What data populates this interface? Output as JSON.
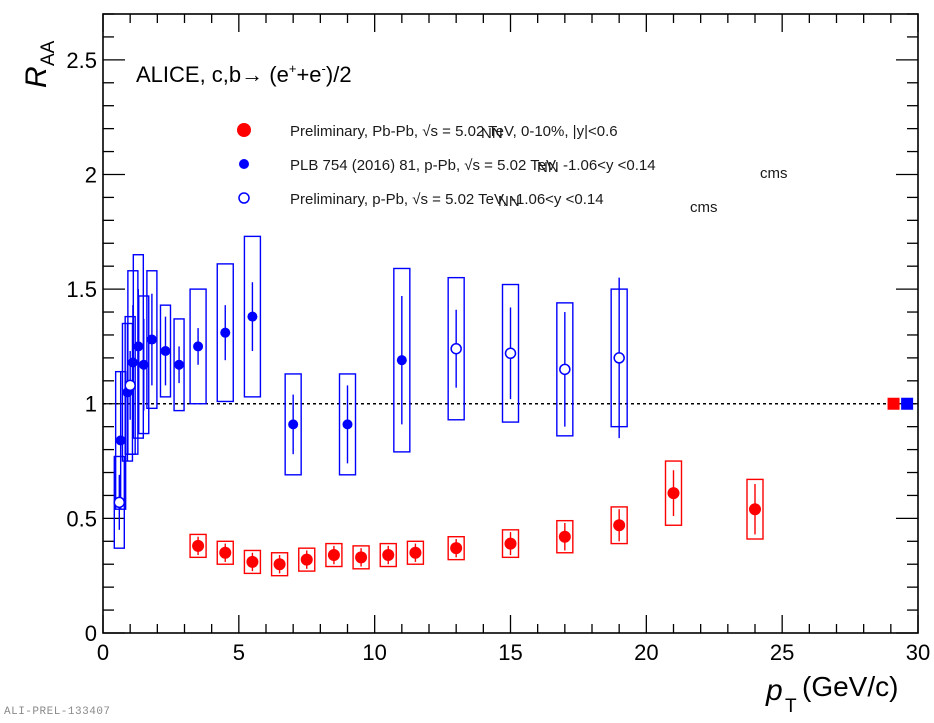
{
  "chart_data": {
    "type": "scatter",
    "title": "ALICE, c,b→ (e⁺+e⁻)/2",
    "xlabel": "p_T (GeV/c)",
    "xlabel_main": "p",
    "xlabel_sub": "T",
    "xlabel_unit": "(GeV/c)",
    "ylabel": "R_AA",
    "ylabel_main": "R",
    "ylabel_sub": "AA",
    "xlim": [
      0,
      30
    ],
    "ylim": [
      0,
      2.7
    ],
    "x_ticks": [
      0,
      5,
      10,
      15,
      20,
      25,
      30
    ],
    "x_tick_labels": [
      "0",
      "5",
      "10",
      "15",
      "20",
      "25",
      "30"
    ],
    "y_ticks": [
      0,
      0.5,
      1,
      1.5,
      2,
      2.5
    ],
    "y_tick_labels": [
      "0",
      "0.5",
      "1",
      "1.5",
      "2",
      "2.5"
    ],
    "reference_line": 1,
    "grid": false,
    "legend_position": "top",
    "series": [
      {
        "name": "Preliminary, Pb-Pb, √s_NN = 5.02 TeV, 0-10%, |y|<0.6",
        "legend_label": "Preliminary, Pb-Pb, √s  = 5.02 TeV, 0-10%, |y|<0.6",
        "color": "#ff0000",
        "marker": "filled-circle",
        "points": [
          {
            "x": 3.5,
            "y": 0.38,
            "stat": 0.04,
            "syst": 0.05
          },
          {
            "x": 4.5,
            "y": 0.35,
            "stat": 0.04,
            "syst": 0.05
          },
          {
            "x": 5.5,
            "y": 0.31,
            "stat": 0.04,
            "syst": 0.05
          },
          {
            "x": 6.5,
            "y": 0.3,
            "stat": 0.04,
            "syst": 0.05
          },
          {
            "x": 7.5,
            "y": 0.32,
            "stat": 0.04,
            "syst": 0.05
          },
          {
            "x": 8.5,
            "y": 0.34,
            "stat": 0.04,
            "syst": 0.05
          },
          {
            "x": 9.5,
            "y": 0.33,
            "stat": 0.04,
            "syst": 0.05
          },
          {
            "x": 10.5,
            "y": 0.34,
            "stat": 0.04,
            "syst": 0.05
          },
          {
            "x": 11.5,
            "y": 0.35,
            "stat": 0.04,
            "syst": 0.05
          },
          {
            "x": 13,
            "y": 0.37,
            "stat": 0.04,
            "syst": 0.05
          },
          {
            "x": 15,
            "y": 0.39,
            "stat": 0.05,
            "syst": 0.06
          },
          {
            "x": 17,
            "y": 0.42,
            "stat": 0.06,
            "syst": 0.07
          },
          {
            "x": 19,
            "y": 0.47,
            "stat": 0.07,
            "syst": 0.08
          },
          {
            "x": 21,
            "y": 0.61,
            "stat": 0.1,
            "syst": 0.14
          },
          {
            "x": 24,
            "y": 0.54,
            "stat": 0.11,
            "syst": 0.13
          }
        ]
      },
      {
        "name": "PLB 754 (2016) 81, p-Pb, √s_NN = 5.02 TeV, -1.06<y_cms<0.14",
        "legend_label": "PLB 754 (2016) 81, p-Pb, √s  = 5.02 TeV, -1.06<y   <0.14",
        "color": "#0000ff",
        "marker": "filled-circle",
        "points": [
          {
            "x": 0.65,
            "y": 0.84,
            "stat": 0.3,
            "syst": 0.3
          },
          {
            "x": 0.9,
            "y": 1.05,
            "stat": 0.3,
            "syst": 0.3
          },
          {
            "x": 1.1,
            "y": 1.18,
            "stat": 0.25,
            "syst": 0.4
          },
          {
            "x": 1.3,
            "y": 1.25,
            "stat": 0.25,
            "syst": 0.4
          },
          {
            "x": 1.5,
            "y": 1.17,
            "stat": 0.2,
            "syst": 0.3
          },
          {
            "x": 1.8,
            "y": 1.28,
            "stat": 0.2,
            "syst": 0.3
          },
          {
            "x": 2.3,
            "y": 1.23,
            "stat": 0.15,
            "syst": 0.2
          },
          {
            "x": 2.8,
            "y": 1.17,
            "stat": 0.08,
            "syst": 0.2
          },
          {
            "x": 3.5,
            "y": 1.25,
            "stat": 0.08,
            "syst": 0.25
          },
          {
            "x": 4.5,
            "y": 1.31,
            "stat": 0.12,
            "syst": 0.3
          },
          {
            "x": 5.5,
            "y": 1.38,
            "stat": 0.15,
            "syst": 0.35
          },
          {
            "x": 7,
            "y": 0.91,
            "stat": 0.13,
            "syst": 0.22
          },
          {
            "x": 9,
            "y": 0.91,
            "stat": 0.17,
            "syst": 0.22
          },
          {
            "x": 11,
            "y": 1.19,
            "stat": 0.28,
            "syst": 0.4
          }
        ]
      },
      {
        "name": "Preliminary, p-Pb, √s_NN = 5.02 TeV, -1.06<y_cms<0.14",
        "legend_label": "Preliminary, p-Pb, √s  = 5.02 TeV, -1.06<y   <0.14",
        "color": "#0000ff",
        "marker": "open-circle",
        "points": [
          {
            "x": 0.6,
            "y": 0.57,
            "stat": 0.12,
            "syst": 0.2
          },
          {
            "x": 1.0,
            "y": 1.08,
            "stat": 0.15,
            "syst": 0.3
          },
          {
            "x": 13,
            "y": 1.24,
            "stat": 0.17,
            "syst": 0.31
          },
          {
            "x": 15,
            "y": 1.22,
            "stat": 0.2,
            "syst": 0.3
          },
          {
            "x": 17,
            "y": 1.15,
            "stat": 0.25,
            "syst": 0.29
          },
          {
            "x": 19,
            "y": 1.2,
            "stat": 0.35,
            "syst": 0.3
          }
        ]
      }
    ],
    "normalization_boxes": [
      {
        "x": 29.1,
        "y": 1,
        "color": "#ff0000"
      },
      {
        "x": 29.6,
        "y": 1,
        "color": "#0000ff"
      }
    ]
  },
  "legend_sub": {
    "nn": "NN",
    "cms": "cms"
  },
  "header": {
    "main": "ALICE, c,b→ (e",
    "sup1": "+",
    "mid": "+e",
    "sup2": "-",
    "end": ")/2"
  },
  "footnote": "ALI-PREL-133407"
}
